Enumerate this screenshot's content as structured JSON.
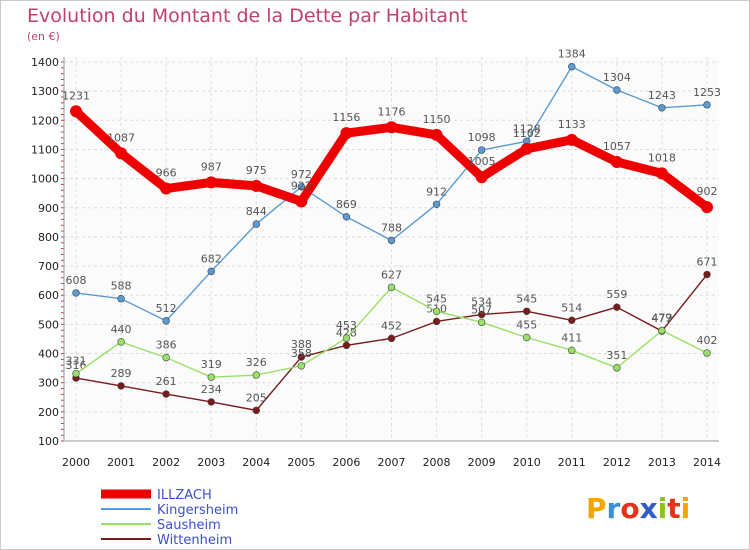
{
  "chart_data": {
    "type": "line",
    "title": "Evolution du Montant de la Dette par Habitant",
    "unit_label": "(en €)",
    "x": [
      "2000",
      "2001",
      "2002",
      "2003",
      "2004",
      "2005",
      "2006",
      "2007",
      "2008",
      "2009",
      "2010",
      "2011",
      "2012",
      "2013",
      "2014"
    ],
    "y_ticks": [
      100,
      200,
      300,
      400,
      500,
      600,
      700,
      800,
      900,
      1000,
      1100,
      1200,
      1300,
      1400
    ],
    "ylim": [
      100,
      1400
    ],
    "grid": true,
    "legend_position": "bottom-left",
    "series": [
      {
        "name": "ILLZACH",
        "color": "#ee0000",
        "values": [
          1231,
          1087,
          966,
          987,
          975,
          922,
          1156,
          1176,
          1150,
          1005,
          1102,
          1133,
          1057,
          1018,
          902
        ]
      },
      {
        "name": "Kingersheim",
        "color": "#5b9bd5",
        "values": [
          608,
          588,
          512,
          682,
          844,
          972,
          869,
          788,
          912,
          1098,
          1128,
          1384,
          1304,
          1243,
          1253
        ]
      },
      {
        "name": "Sausheim",
        "color": "#99e067",
        "values": [
          331,
          440,
          386,
          319,
          326,
          358,
          453,
          627,
          545,
          507,
          455,
          411,
          351,
          479,
          402
        ]
      },
      {
        "name": "Wittenheim",
        "color": "#7a1a1a",
        "values": [
          316,
          289,
          261,
          234,
          205,
          388,
          428,
          452,
          510,
          534,
          545,
          514,
          559,
          477,
          671
        ]
      }
    ]
  },
  "brand": {
    "name": "Proxiti"
  }
}
